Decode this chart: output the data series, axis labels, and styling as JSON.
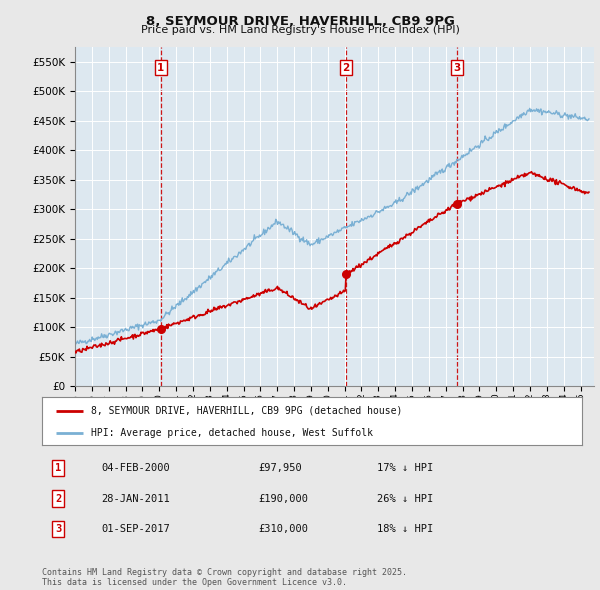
{
  "title": "8, SEYMOUR DRIVE, HAVERHILL, CB9 9PG",
  "subtitle": "Price paid vs. HM Land Registry's House Price Index (HPI)",
  "ylim": [
    0,
    575000
  ],
  "yticks": [
    0,
    50000,
    100000,
    150000,
    200000,
    250000,
    300000,
    350000,
    400000,
    450000,
    500000,
    550000
  ],
  "background_color": "#e8e8e8",
  "plot_bg_color": "#dde8f0",
  "grid_color": "#ffffff",
  "hpi_color": "#7ab0d4",
  "price_color": "#cc0000",
  "vline_color": "#cc0000",
  "sales": [
    {
      "label": "1",
      "date": 2000.09,
      "price": 97950
    },
    {
      "label": "2",
      "date": 2011.08,
      "price": 190000
    },
    {
      "label": "3",
      "date": 2017.67,
      "price": 310000
    }
  ],
  "sale_table": [
    {
      "num": "1",
      "date": "04-FEB-2000",
      "price": "£97,950",
      "hpi": "17% ↓ HPI"
    },
    {
      "num": "2",
      "date": "28-JAN-2011",
      "price": "£190,000",
      "hpi": "26% ↓ HPI"
    },
    {
      "num": "3",
      "date": "01-SEP-2017",
      "price": "£310,000",
      "hpi": "18% ↓ HPI"
    }
  ],
  "legend_line1": "8, SEYMOUR DRIVE, HAVERHILL, CB9 9PG (detached house)",
  "legend_line2": "HPI: Average price, detached house, West Suffolk",
  "footer": "Contains HM Land Registry data © Crown copyright and database right 2025.\nThis data is licensed under the Open Government Licence v3.0."
}
